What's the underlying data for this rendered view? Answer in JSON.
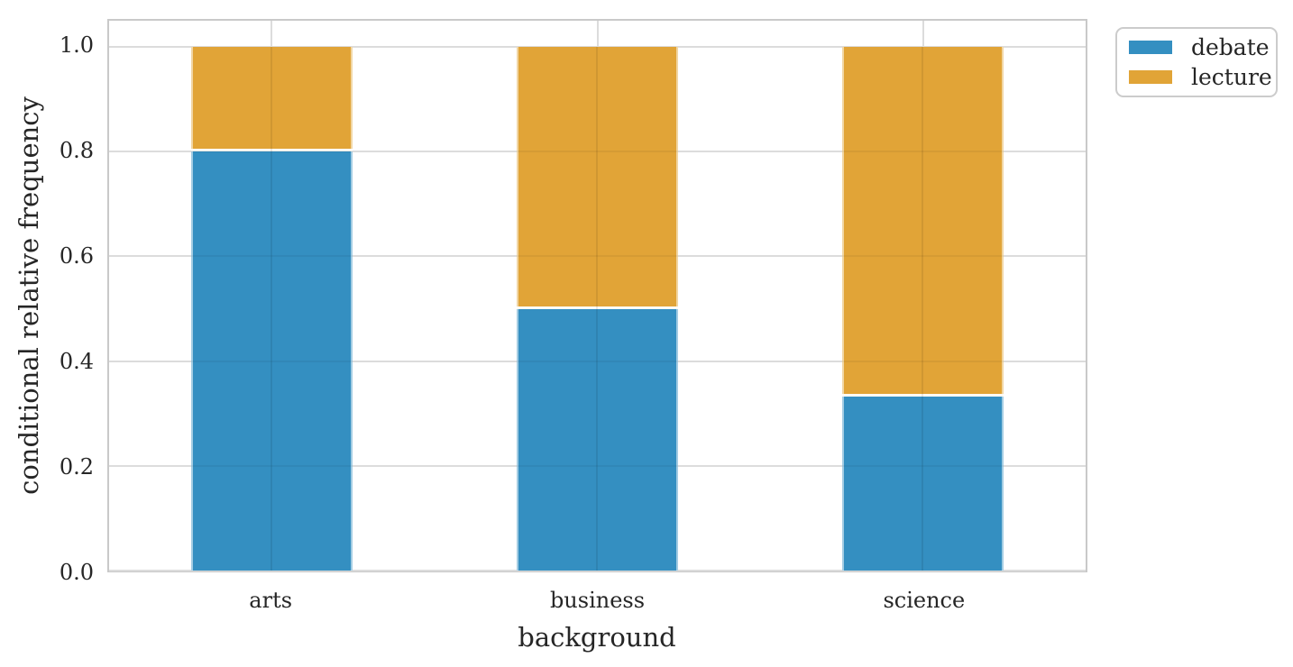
{
  "chart_data": {
    "type": "bar",
    "stacked": true,
    "orientation": "vertical",
    "title": "",
    "xlabel": "background",
    "ylabel": "conditional relative frequency",
    "categories": [
      "arts",
      "business",
      "science"
    ],
    "series": [
      {
        "name": "debate",
        "color": "#348fc1",
        "values": [
          0.8,
          0.5,
          0.333
        ]
      },
      {
        "name": "lecture",
        "color": "#e1a437",
        "values": [
          0.2,
          0.5,
          0.667
        ]
      }
    ],
    "ylim": [
      0,
      1.05
    ],
    "yticks": [
      0,
      0.2,
      0.4,
      0.6,
      0.8,
      1.0
    ],
    "ytick_labels": [
      "0.0",
      "0.2",
      "0.4",
      "0.6",
      "0.8",
      "1.0"
    ],
    "bar_width_fraction": 0.497,
    "grid": true,
    "grid_style": "whitegrid",
    "legend": {
      "position": "outside-upper-right",
      "entries": [
        "debate",
        "lecture"
      ]
    }
  }
}
